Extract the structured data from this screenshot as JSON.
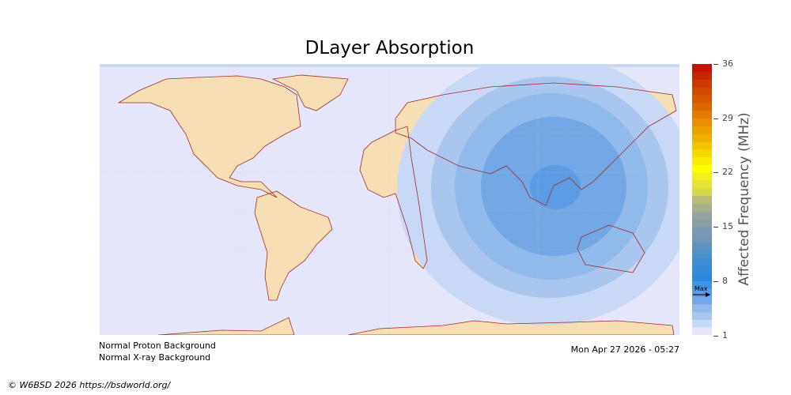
{
  "title": "DLayer Absorption",
  "colorbar": {
    "label": "Affected Frequency (MHz)",
    "ticks": [
      "36",
      "29",
      "22",
      "15",
      "8",
      "1"
    ],
    "range": [
      1,
      36
    ],
    "max_marker_label": "Max",
    "max_marker_value": 6.2,
    "color_stops": [
      [
        1,
        "#e6e6fa"
      ],
      [
        2,
        "#c9d8f5"
      ],
      [
        3,
        "#aac6ef"
      ],
      [
        4,
        "#90b9ec"
      ],
      [
        5,
        "#73a8e6"
      ],
      [
        6,
        "#5b9be3"
      ],
      [
        8,
        "#2b88dd"
      ],
      [
        10,
        "#3e8dd2"
      ],
      [
        12,
        "#5d93c0"
      ],
      [
        14,
        "#7f9ab0"
      ],
      [
        16,
        "#97a39e"
      ],
      [
        18,
        "#b9bc78"
      ],
      [
        19,
        "#d5d84a"
      ],
      [
        21,
        "#f0f020"
      ],
      [
        22,
        "#ffff00"
      ],
      [
        24,
        "#f5d800"
      ],
      [
        26,
        "#eeb000"
      ],
      [
        28,
        "#e88f00"
      ],
      [
        30,
        "#db6800"
      ],
      [
        33,
        "#cc3a00"
      ],
      [
        36,
        "#c00000"
      ]
    ]
  },
  "map": {
    "ocean_color": "#e6e6fa",
    "land_color": "#f5deb3",
    "coast_color": "#a52a2a",
    "absorption_levels": [
      2,
      3,
      4,
      5,
      6
    ]
  },
  "status": {
    "proton": "Normal Proton Background",
    "xray": "Normal X-ray Background",
    "timestamp": "Mon Apr 27 2026 - 05:27"
  },
  "copyright": "© W6BSD 2026 https://bsdworld.org/"
}
